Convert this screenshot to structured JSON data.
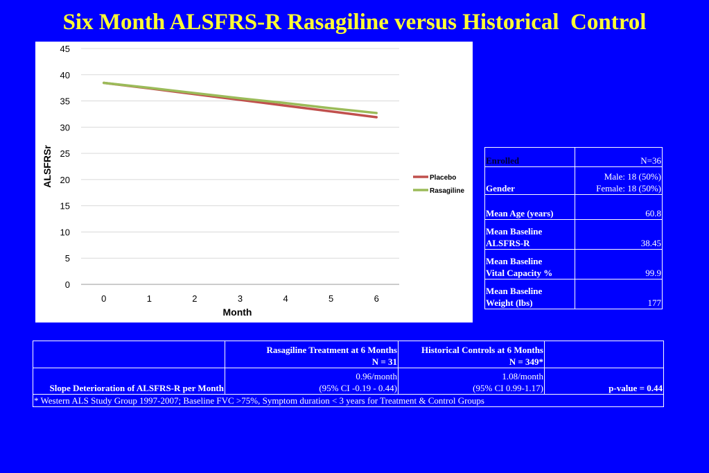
{
  "title": "Six Month ALSFRS-R Rasagiline versus Historical  Control",
  "chart_data": {
    "type": "line",
    "x": [
      0,
      1,
      2,
      3,
      4,
      5,
      6
    ],
    "xlabel": "Month",
    "ylabel": "ALSFRSr",
    "ylim": [
      0,
      45
    ],
    "yticks": [
      0,
      5,
      10,
      15,
      20,
      25,
      30,
      35,
      40,
      45
    ],
    "grid": true,
    "legend": "right",
    "series": [
      {
        "name": "Placebo",
        "color": "#c0504d",
        "values": [
          38.45,
          37.4,
          36.3,
          35.2,
          34.1,
          33.0,
          31.9
        ]
      },
      {
        "name": "Rasagiline",
        "color": "#9bbb59",
        "values": [
          38.45,
          37.5,
          36.5,
          35.5,
          34.6,
          33.6,
          32.7
        ]
      }
    ]
  },
  "info_table": [
    {
      "label": "Enrolled",
      "value": "N=36"
    },
    {
      "label": "Gender",
      "value": "Male: 18 (50%)",
      "value2": "Female: 18 (50%)"
    },
    {
      "label": "Mean Age (years)",
      "value": "60.8"
    },
    {
      "label": "Mean Baseline",
      "label2": "ALSFRS-R",
      "value": "38.45"
    },
    {
      "label": "Mean Baseline",
      "label2": "Vital Capacity %",
      "value": "99.9"
    },
    {
      "label": "Mean Baseline",
      "label2": "Weight (lbs)",
      "value": "177"
    }
  ],
  "summary_table": {
    "col1_header": "Rasagiline Treatment at 6 Months",
    "col1_n": "N = 31",
    "col2_header": "Historical Controls at 6 Months",
    "col2_n": "N = 349*",
    "row_label": "Slope Deterioration of ALSFRS-R per Month",
    "col1_value": "0.96/month",
    "col1_ci": "(95% CI -0.19 - 0.44)",
    "col2_value": "1.08/month",
    "col2_ci": "(95% CI 0.99-1.17)",
    "pvalue": "p-value = 0.44",
    "footnote": "* Western ALS Study Group 1997-2007; Baseline FVC >75%, Symptom duration < 3 years for Treatment & Control Groups"
  }
}
